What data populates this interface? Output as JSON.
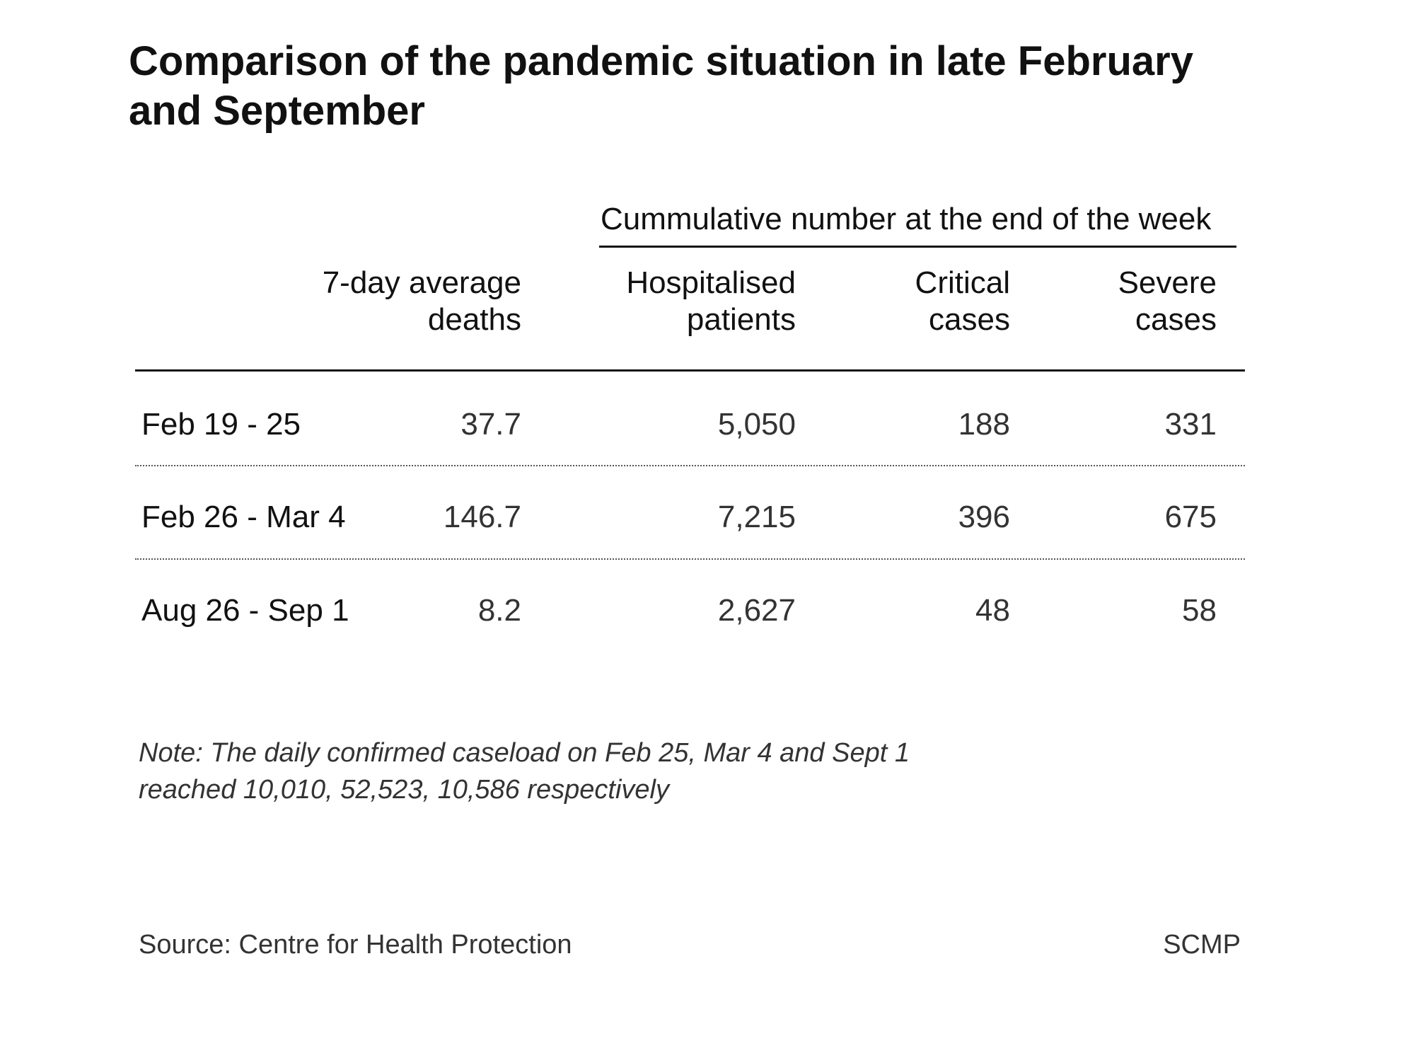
{
  "chart_data": {
    "type": "table",
    "title": "Comparison of the pandemic situation in late February and September",
    "group_header": "Cummulative number at the end of the week",
    "columns": [
      {
        "line1": "7-day average",
        "line2": "deaths"
      },
      {
        "line1": "Hospitalised",
        "line2": "patients"
      },
      {
        "line1": "Critical",
        "line2": "cases"
      },
      {
        "line1": "Severe",
        "line2": "cases"
      }
    ],
    "rows": [
      {
        "label": "Feb 19 - 25",
        "values": [
          "37.7",
          "5,050",
          "188",
          "331"
        ]
      },
      {
        "label": "Feb 26 - Mar 4",
        "values": [
          "146.7",
          "7,215",
          "396",
          "675"
        ]
      },
      {
        "label": "Aug 26 - Sep 1",
        "values": [
          "8.2",
          "2,627",
          "48",
          "58"
        ]
      }
    ],
    "note_line1": "Note: The daily confirmed caseload on Feb 25, Mar 4 and Sept 1",
    "note_line2": "reached 10,010, 52,523, 10,586 respectively",
    "source": "Source: Centre for Health Protection",
    "credit": "SCMP"
  }
}
